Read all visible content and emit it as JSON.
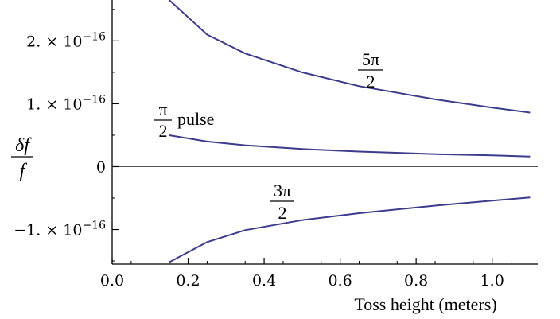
{
  "chart_data": {
    "type": "line",
    "xlabel": "Toss height (meters)",
    "ylabel": {
      "numerator": "δf",
      "denominator": "f"
    },
    "xlim": [
      0.0,
      1.12
    ],
    "ylim": [
      -1.55e-16,
      2.65e-16
    ],
    "x_ticks": [
      {
        "value": 0.0,
        "label": "0.0"
      },
      {
        "value": 0.2,
        "label": "0.2"
      },
      {
        "value": 0.4,
        "label": "0.4"
      },
      {
        "value": 0.6,
        "label": "0.6"
      },
      {
        "value": 0.8,
        "label": "0.8"
      },
      {
        "value": 1.0,
        "label": "1.0"
      }
    ],
    "y_ticks": [
      {
        "value": 2e-16,
        "mantissa": "2.",
        "base": "10",
        "exp": "−16"
      },
      {
        "value": 1e-16,
        "mantissa": "1.",
        "base": "10",
        "exp": "−16"
      },
      {
        "value": 0,
        "mantissa": "0",
        "base": "",
        "exp": ""
      },
      {
        "value": -1e-16,
        "mantissa": "−1.",
        "base": "10",
        "exp": "−16"
      }
    ],
    "grid": false,
    "zero_line": true,
    "line_color": "#3c3c8c",
    "series": [
      {
        "x": [
          0.15,
          0.25,
          0.35,
          0.5,
          0.65,
          0.85,
          1.0,
          1.1
        ],
        "y": [
          2.65e-16,
          2.1e-16,
          1.8e-16,
          1.5e-16,
          1.28e-16,
          1.07e-16,
          9.4e-17,
          8.6e-17
        ]
      },
      {
        "x": [
          0.15,
          0.25,
          0.35,
          0.5,
          0.65,
          0.85,
          1.0,
          1.1
        ],
        "y": [
          5e-17,
          4e-17,
          3.4e-17,
          2.8e-17,
          2.4e-17,
          2e-17,
          1.8e-17,
          1.6e-17
        ]
      },
      {
        "x": [
          0.15,
          0.25,
          0.35,
          0.5,
          0.65,
          0.85,
          1.0,
          1.1
        ],
        "y": [
          -1.52e-16,
          -1.2e-16,
          -1.01e-16,
          -8.5e-17,
          -7.4e-17,
          -6.2e-17,
          -5.4e-17,
          -4.9e-17
        ]
      }
    ],
    "annotations": {
      "five_pi_over_2": {
        "num": "5π",
        "den": "2"
      },
      "pi_over_2": {
        "num": "π",
        "den": "2",
        "suffix": "pulse"
      },
      "three_pi_over_2": {
        "num": "3π",
        "den": "2"
      }
    }
  }
}
